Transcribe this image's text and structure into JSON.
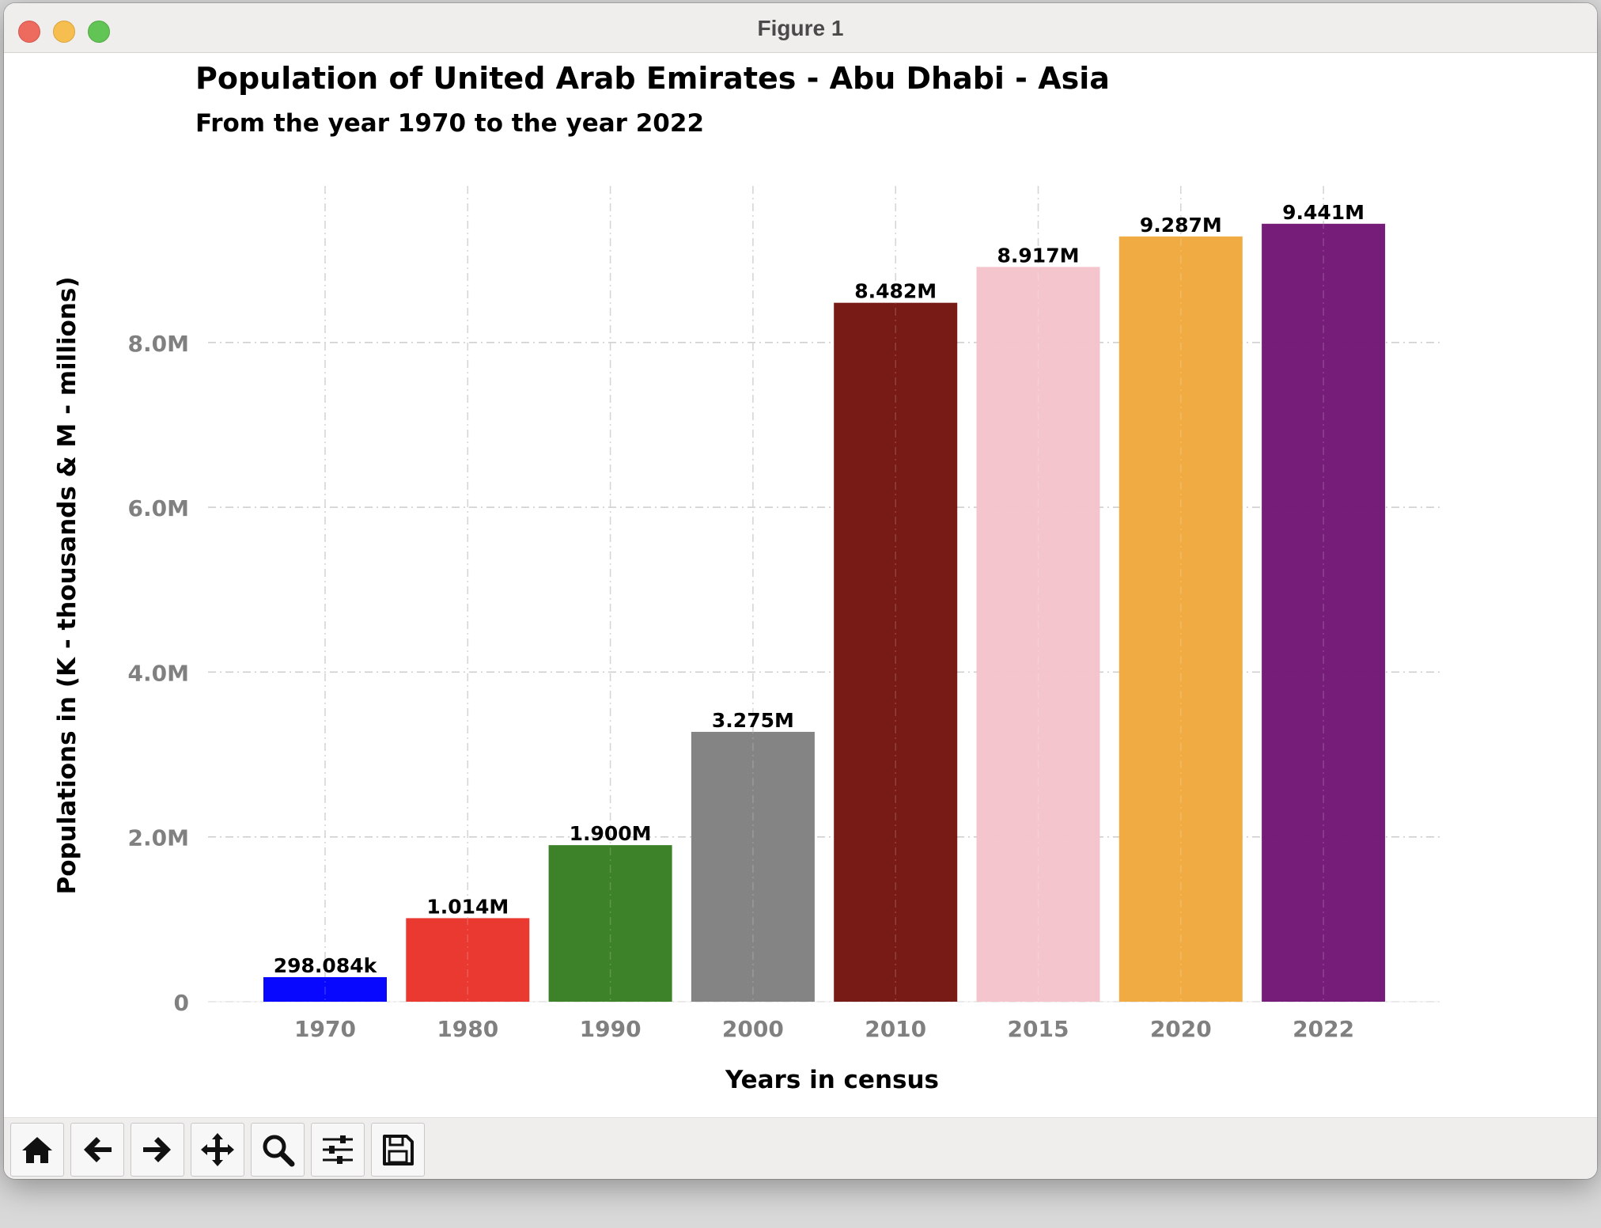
{
  "window": {
    "title": "Figure 1"
  },
  "toolbar": {
    "buttons": [
      {
        "name": "home-icon"
      },
      {
        "name": "back-arrow-icon"
      },
      {
        "name": "forward-arrow-icon"
      },
      {
        "name": "pan-move-icon"
      },
      {
        "name": "zoom-magnifier-icon"
      },
      {
        "name": "configure-subplots-icon"
      },
      {
        "name": "save-floppy-icon"
      }
    ]
  },
  "chart_data": {
    "type": "bar",
    "title": "Population of United Arab Emirates - Abu Dhabi - Asia",
    "subtitle": "From the year 1970 to the year 2022",
    "xlabel": "Years in census",
    "ylabel": "Populations in (K - thousands & M - millions)",
    "categories": [
      "1970",
      "1980",
      "1990",
      "2000",
      "2010",
      "2015",
      "2020",
      "2022"
    ],
    "values": [
      298084,
      1014000,
      1900000,
      3275000,
      8482000,
      8917000,
      9287000,
      9441000
    ],
    "data_labels": [
      "298.084k",
      "1.014M",
      "1.900M",
      "3.275M",
      "8.482M",
      "8.917M",
      "9.287M",
      "9.441M"
    ],
    "colors": [
      "#0000ff",
      "#e8332a",
      "#377d22",
      "#808080",
      "#74130e",
      "#f5c3cb",
      "#f0a93d",
      "#721675"
    ],
    "ylim": [
      0,
      9900000
    ],
    "yticks": [
      0,
      2000000,
      4000000,
      6000000,
      8000000
    ],
    "ytick_labels": [
      "0",
      "2.0M",
      "4.0M",
      "6.0M",
      "8.0M"
    ],
    "grid": true
  }
}
